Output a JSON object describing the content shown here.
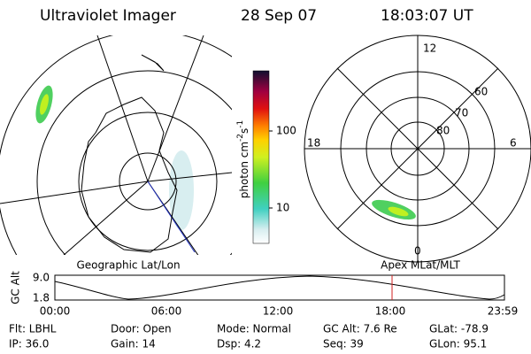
{
  "header": {
    "instrument": "Ultraviolet Imager",
    "date": "28 Sep 07",
    "time": "18:03:07 UT"
  },
  "colorbar": {
    "label": [
      "photon cm",
      "-2",
      "s",
      "-1"
    ],
    "ticks": [
      "100",
      "10"
    ]
  },
  "polar": {
    "labels": [
      "12",
      "18",
      "6",
      "0",
      "60",
      "70",
      "80"
    ]
  },
  "map_labels": [
    "Geographic Lat/Lon",
    "Apex MLat/MLT"
  ],
  "altitude_plot": {
    "ylabel": "GC Alt",
    "yticks": [
      "9.0",
      "1.8"
    ],
    "xticks": [
      "00:00",
      "06:00",
      "12:00",
      "18:00",
      "23:59"
    ]
  },
  "info": [
    [
      "Flt: LBHL",
      "Door: Open",
      "Mode: Normal",
      "GC Alt: 7.6 Re",
      "GLat: -78.9"
    ],
    [
      "IP: 36.0",
      "Gain: 14",
      "Dsp:    4.2",
      "Seq: 39",
      "GLon:  95.1"
    ]
  ]
}
